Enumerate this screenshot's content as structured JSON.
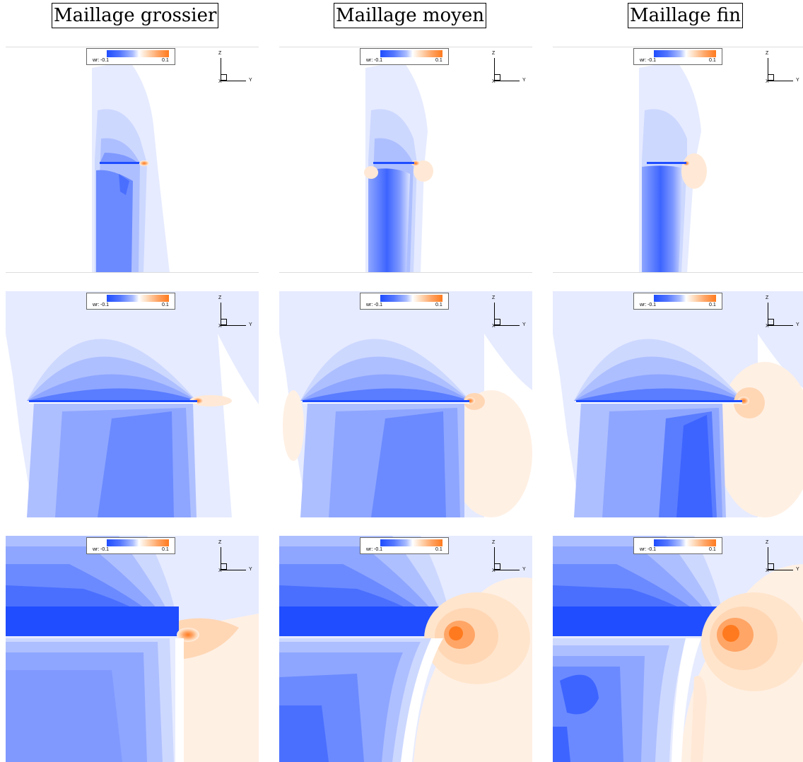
{
  "columns": [
    {
      "title": "Maillage grossier"
    },
    {
      "title": "Maillage moyen"
    },
    {
      "title": "Maillage fin"
    }
  ],
  "legend": {
    "variable": "wr:",
    "min": "-0.1",
    "max": "0.1",
    "colors": {
      "negative": "#1f4dff",
      "zero": "#ffffff",
      "positive": "#ff7a1e"
    }
  },
  "axes": {
    "z": "Z",
    "y": "Y",
    "x": "X"
  }
}
